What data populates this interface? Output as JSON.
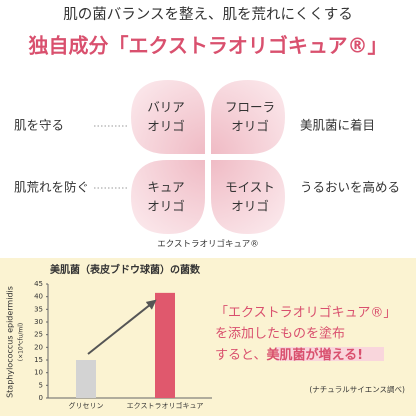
{
  "header": {
    "lead": "肌の菌バランスを整え、肌を荒れにくくする",
    "title": "独自成分「エクストラオリゴキュア®」"
  },
  "petals": [
    {
      "label": [
        "バリア",
        "オリゴ"
      ],
      "benefit": "肌を守る"
    },
    {
      "label": [
        "フローラ",
        "オリゴ"
      ],
      "benefit": "美肌菌に着目"
    },
    {
      "label": [
        "キュア",
        "オリゴ"
      ],
      "benefit": "肌荒れを防ぐ"
    },
    {
      "label": [
        "モイスト",
        "オリゴ"
      ],
      "benefit": "うるおいを高める"
    }
  ],
  "petal_caption": "エクストラオリゴキュア®",
  "chart_data": {
    "type": "bar",
    "title": "美肌菌（表皮ブドウ球菌）の菌数",
    "y_label": [
      "Staphylococcus epidermidis",
      "(×10⁴cfu/ml)"
    ],
    "categories": [
      "グリセリン",
      "エクストラオリゴキュア"
    ],
    "series": [
      {
        "name": "菌数",
        "values": [
          15,
          41.5
        ],
        "colors": [
          "#d3d3d3",
          "#e0586d"
        ]
      }
    ],
    "ylim": [
      0,
      45
    ],
    "yticks": [
      0,
      5,
      10,
      15,
      20,
      25,
      30,
      35,
      40,
      45
    ],
    "grid": false
  },
  "claim": {
    "lines": [
      "「エクストラオリゴキュア®」",
      "を添加したものを塗布",
      "すると、"
    ],
    "highlight": "美肌菌が増える!"
  },
  "source": "(ナチュラルサイエンス調べ)"
}
